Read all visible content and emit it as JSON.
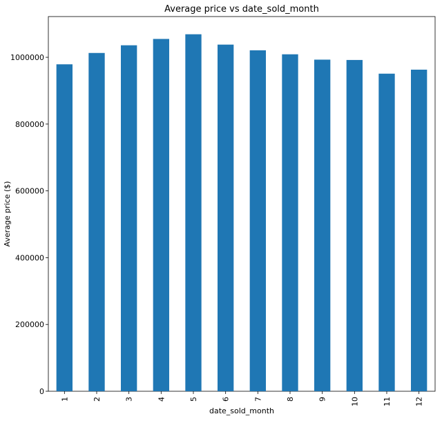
{
  "chart_data": {
    "type": "bar",
    "title": "Average price vs date_sold_month",
    "xlabel": "date_sold_month",
    "ylabel": "Average price ($)",
    "categories": [
      "1",
      "2",
      "3",
      "4",
      "5",
      "6",
      "7",
      "8",
      "9",
      "10",
      "11",
      "12"
    ],
    "values": [
      979000,
      1013000,
      1036000,
      1055000,
      1069000,
      1038000,
      1021000,
      1009000,
      993000,
      992000,
      951000,
      963000
    ],
    "ylim": [
      0,
      1122000
    ],
    "yticks": [
      0,
      200000,
      400000,
      600000,
      800000,
      1000000
    ],
    "ytick_labels": [
      "0",
      "200000",
      "400000",
      "600000",
      "800000",
      "1000000"
    ],
    "bar_color": "#1f77b4",
    "grid": false,
    "legend": "none"
  }
}
